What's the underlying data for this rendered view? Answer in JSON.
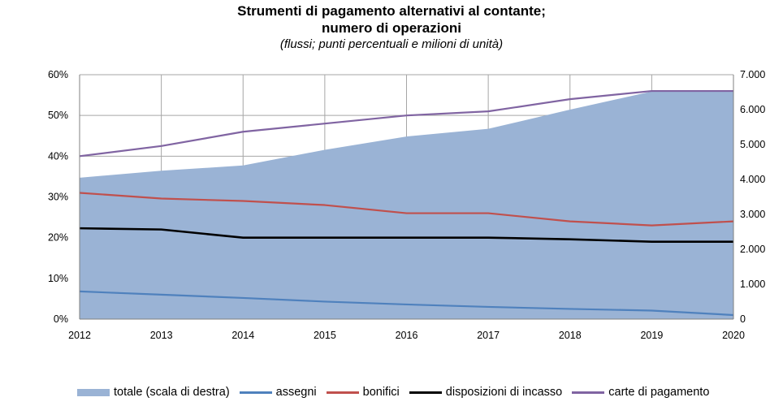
{
  "chart_data": {
    "type": "area+line",
    "title": "Strumenti di pagamento alternativi al contante;",
    "title_line2": "numero di operazioni",
    "subtitle": "(flussi; punti percentuali e milioni di unità)",
    "categories": [
      "2012",
      "2013",
      "2014",
      "2015",
      "2016",
      "2017",
      "2018",
      "2019",
      "2020"
    ],
    "y_left": {
      "ylim": [
        0,
        60
      ],
      "ticks": [
        "0%",
        "10%",
        "20%",
        "30%",
        "40%",
        "50%",
        "60%"
      ],
      "grid": true
    },
    "y_right": {
      "ylim": [
        0,
        7000
      ],
      "ticks": [
        "0",
        "1.000",
        "2.000",
        "3.000",
        "4.000",
        "5.000",
        "6.000",
        "7.000"
      ]
    },
    "area_series": {
      "name": "totale (scala di destra)",
      "axis": "right",
      "color": "#9ab3d5",
      "values": [
        4050,
        4250,
        4400,
        4850,
        5230,
        5450,
        6000,
        6520,
        6540
      ]
    },
    "series": [
      {
        "name": "assegni",
        "axis": "left",
        "color": "#4f81bd",
        "values": [
          6.8,
          6.0,
          5.2,
          4.3,
          3.6,
          3.0,
          2.5,
          2.1,
          1.0
        ]
      },
      {
        "name": "bonifici",
        "axis": "left",
        "color": "#c0504d",
        "values": [
          31,
          29.6,
          29,
          28,
          26,
          26,
          24,
          23,
          24
        ]
      },
      {
        "name": "disposizioni di incasso",
        "axis": "left",
        "color": "#000000",
        "values": [
          22.3,
          22,
          20,
          20,
          20,
          20,
          19.6,
          19,
          19
        ]
      },
      {
        "name": "carte di pagamento",
        "axis": "left",
        "color": "#8064a2",
        "values": [
          40,
          42.5,
          46,
          48,
          50,
          51,
          54,
          56,
          56
        ]
      }
    ]
  }
}
